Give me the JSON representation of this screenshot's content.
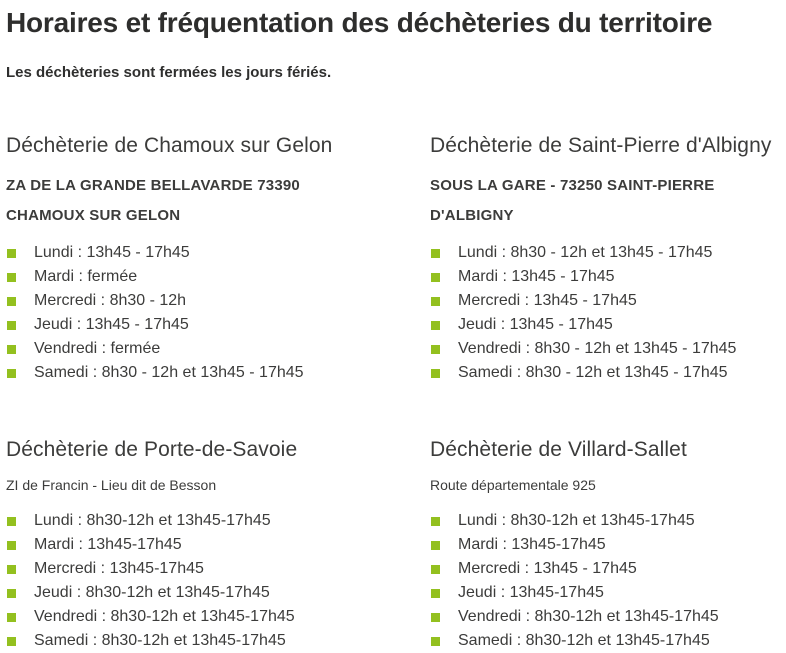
{
  "page": {
    "title": "Horaires et fréquentation des déchèteries du territoire",
    "subtitle": "Les déchèteries sont fermées les jours fériés."
  },
  "colors": {
    "accent_green": "#93c01f",
    "text_dark": "#3c3c3b",
    "title_dark": "#2e2e2d"
  },
  "icons": {
    "list_bullet": "green-square"
  },
  "sections": [
    {
      "name": "Déchèterie de Chamoux sur Gelon",
      "address": "ZA DE LA GRANDE BELLAVARDE 73390 CHAMOUX SUR GELON",
      "hours": [
        "Lundi : 13h45 - 17h45",
        "Mardi : fermée",
        "Mercredi : 8h30 - 12h",
        "Jeudi : 13h45 - 17h45",
        "Vendredi : fermée",
        "Samedi : 8h30 - 12h et 13h45 - 17h45"
      ]
    },
    {
      "name": "Déchèterie de Saint-Pierre d'Albigny",
      "address": "SOUS LA GARE - 73250 SAINT-PIERRE D'ALBIGNY",
      "hours": [
        "Lundi : 8h30 - 12h et 13h45 - 17h45",
        "Mardi : 13h45 - 17h45",
        "Mercredi : 13h45 - 17h45",
        "Jeudi : 13h45 - 17h45",
        "Vendredi : 8h30 - 12h et 13h45 - 17h45",
        "Samedi : 8h30 - 12h et 13h45 - 17h45"
      ]
    },
    {
      "name": "Déchèterie de Porte-de-Savoie",
      "address": "ZI de Francin - Lieu dit de Besson",
      "hours": [
        "Lundi : 8h30-12h et 13h45-17h45",
        "Mardi : 13h45-17h45",
        "Mercredi : 13h45-17h45",
        "Jeudi : 8h30-12h et 13h45-17h45",
        "Vendredi : 8h30-12h et 13h45-17h45",
        "Samedi : 8h30-12h et 13h45-17h45"
      ]
    },
    {
      "name": "Déchèterie de Villard-Sallet",
      "address": "Route départementale 925",
      "hours": [
        "Lundi : 8h30-12h et 13h45-17h45",
        "Mardi : 13h45-17h45",
        "Mercredi : 13h45 - 17h45",
        "Jeudi : 13h45-17h45",
        "Vendredi : 8h30-12h et 13h45-17h45",
        "Samedi : 8h30-12h et 13h45-17h45"
      ]
    }
  ]
}
